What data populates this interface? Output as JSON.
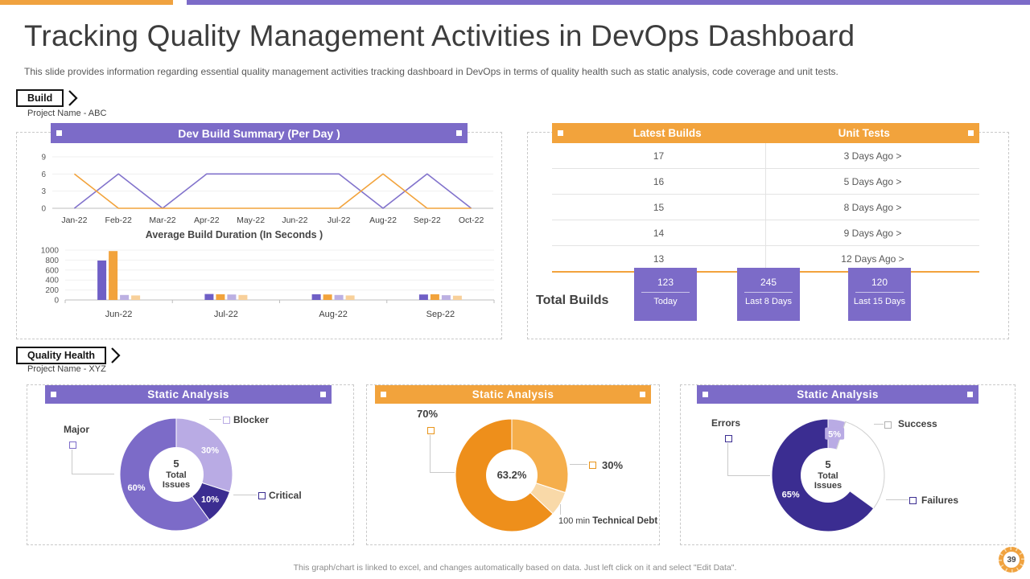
{
  "page": {
    "title": "Tracking Quality Management Activities in DevOps Dashboard",
    "subtitle": "This slide provides information regarding essential quality management activities tracking dashboard in DevOps in terms of quality health such as static analysis, code coverage and unit tests.",
    "footer": "This graph/chart is linked to excel, and changes automatically based on data. Just left click on it and select \"Edit Data\".",
    "page_number": "39"
  },
  "sections": {
    "build": {
      "tag": "Build",
      "project": "Project Name - ABC"
    },
    "quality": {
      "tag": "Quality Health",
      "project": "Project Name - XYZ"
    }
  },
  "totals": {
    "label": "Total Builds",
    "boxes": [
      {
        "value": "123",
        "label": "Today"
      },
      {
        "value": "245",
        "label": "Last 8 Days"
      },
      {
        "value": "120",
        "label": "Last 15 Days"
      }
    ]
  },
  "colors": {
    "purple": "#7C6BC8",
    "orange": "#F2A33C",
    "indigo": "#3B2D91",
    "light_purple": "#B9ABE4"
  },
  "chart_data": [
    {
      "id": "dev-build-line",
      "type": "line",
      "title": "Dev Build Summary (Per Day )",
      "x": [
        "Jan-22",
        "Feb-22",
        "Mar-22",
        "Apr-22",
        "May-22",
        "Jun-22",
        "Jul-22",
        "Aug-22",
        "Sep-22",
        "Oct-22"
      ],
      "ylim": [
        0,
        9
      ],
      "yticks": [
        0,
        3,
        6,
        9
      ],
      "grid": true,
      "legend": "none",
      "series": [
        {
          "name": "purple",
          "color": "#8273CC",
          "values": [
            0,
            6,
            0,
            6,
            6,
            6,
            6,
            0,
            6,
            0
          ]
        },
        {
          "name": "orange",
          "color": "#F2A33C",
          "values": [
            6,
            0,
            0,
            0,
            0,
            0,
            0,
            6,
            0,
            0
          ]
        }
      ]
    },
    {
      "id": "avg-build-duration",
      "type": "bar",
      "title": "Average Build Duration (In Seconds )",
      "categories": [
        "Jun-22",
        "Jul-22",
        "Aug-22",
        "Sep-22"
      ],
      "ylim": [
        0,
        1000
      ],
      "yticks": [
        0,
        200,
        400,
        600,
        800,
        1000
      ],
      "series": [
        {
          "name": "s1",
          "color": "#6F5FC6",
          "values": [
            790,
            120,
            115,
            110
          ]
        },
        {
          "name": "s2",
          "color": "#F2A33C",
          "values": [
            980,
            115,
            110,
            115
          ]
        },
        {
          "name": "s3",
          "color": "#BCB0E2",
          "values": [
            100,
            110,
            100,
            95
          ]
        },
        {
          "name": "s4",
          "color": "#F8D09A",
          "values": [
            90,
            100,
            90,
            85
          ]
        }
      ]
    },
    {
      "id": "latest-builds",
      "type": "table",
      "columns": [
        "Latest Builds",
        "Unit Tests"
      ],
      "rows": [
        [
          "17",
          "3 Days Ago >"
        ],
        [
          "16",
          "5 Days Ago >"
        ],
        [
          "15",
          "8 Days Ago >"
        ],
        [
          "14",
          "9 Days Ago >"
        ],
        [
          "13",
          "12 Days Ago >"
        ]
      ]
    },
    {
      "id": "donut-issues",
      "type": "pie",
      "title": "Static Analysis",
      "center": [
        "5",
        "Total Issues"
      ],
      "hole": 34,
      "slices": [
        {
          "label": "Blocker",
          "value": 30,
          "color": "#B9ABE4",
          "pct_label": "30%"
        },
        {
          "label": "Critical",
          "value": 10,
          "color": "#3B2D91",
          "pct_label": "10%"
        },
        {
          "label": "Major",
          "value": 60,
          "color": "#7C6BC8",
          "pct_label": "60%"
        }
      ],
      "callouts": [
        {
          "text": "Major"
        },
        {
          "text": "Blocker"
        },
        {
          "text": "Critical"
        }
      ]
    },
    {
      "id": "donut-debt",
      "type": "pie",
      "title": "Static Analysis",
      "center": [
        "63.2%"
      ],
      "hole": 32,
      "slices": [
        {
          "label": "",
          "value": 30,
          "color": "#F5AE4B"
        },
        {
          "label": "",
          "value": 7,
          "color": "#F9D9A8"
        },
        {
          "label": "",
          "value": 63,
          "color": "#EE8F1B"
        }
      ],
      "callouts": [
        {
          "text": "70%"
        },
        {
          "text": "30%"
        }
      ],
      "annotation": {
        "value": "100 min",
        "label": "Technical Debt"
      }
    },
    {
      "id": "donut-errors",
      "type": "pie",
      "title": "Static Analysis",
      "center": [
        "5",
        "Total Issues"
      ],
      "hole": 34,
      "slices": [
        {
          "label": "",
          "value": 5,
          "color": "#B9ABE4",
          "pct_label": "5%",
          "chip": true
        },
        {
          "label": "",
          "value": 30,
          "color": "#FFFFFF",
          "stroke": "#cfcfcf"
        },
        {
          "label": "",
          "value": 65,
          "color": "#3B2D91",
          "pct_label": "65%"
        }
      ],
      "callouts": [
        {
          "text": "Errors"
        },
        {
          "text": "Success"
        },
        {
          "text": "Failures"
        }
      ]
    }
  ]
}
